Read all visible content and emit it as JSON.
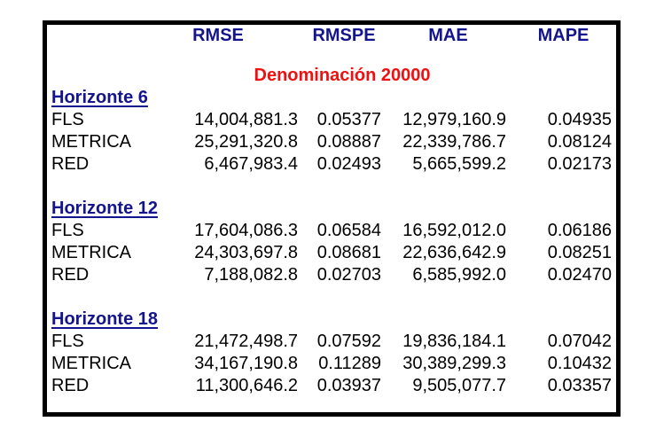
{
  "table": {
    "columns": [
      "RMSE",
      "RMSPE",
      "MAE",
      "MAPE"
    ],
    "title": "Denominación 20000",
    "colors": {
      "header_navy": "#14148C",
      "title_red": "#EE1111",
      "text_black": "#000000",
      "border_black": "#000000",
      "background": "#FFFFFF"
    },
    "sections": [
      {
        "heading": "Horizonte 6",
        "rows": [
          {
            "label": "FLS",
            "rmse": "14,004,881.3",
            "rmspe": "0.05377",
            "mae": "12,979,160.9",
            "mape": "0.04935"
          },
          {
            "label": "METRICA",
            "rmse": "25,291,320.8",
            "rmspe": "0.08887",
            "mae": "22,339,786.7",
            "mape": "0.08124"
          },
          {
            "label": "RED",
            "rmse": "6,467,983.4",
            "rmspe": "0.02493",
            "mae": "5,665,599.2",
            "mape": "0.02173"
          }
        ]
      },
      {
        "heading": "Horizonte 12",
        "rows": [
          {
            "label": "FLS",
            "rmse": "17,604,086.3",
            "rmspe": "0.06584",
            "mae": "16,592,012.0",
            "mape": "0.06186"
          },
          {
            "label": "METRICA",
            "rmse": "24,303,697.8",
            "rmspe": "0.08681",
            "mae": "22,636,642.9",
            "mape": "0.08251"
          },
          {
            "label": "RED",
            "rmse": "7,188,082.8",
            "rmspe": "0.02703",
            "mae": "6,585,992.0",
            "mape": "0.02470"
          }
        ]
      },
      {
        "heading": "Horizonte 18",
        "rows": [
          {
            "label": "FLS",
            "rmse": "21,472,498.7",
            "rmspe": "0.07592",
            "mae": "19,836,184.1",
            "mape": "0.07042"
          },
          {
            "label": "METRICA",
            "rmse": "34,167,190.8",
            "rmspe": "0.11289",
            "mae": "30,389,299.3",
            "mape": "0.10432"
          },
          {
            "label": "RED",
            "rmse": "11,300,646.2",
            "rmspe": "0.03937",
            "mae": "9,505,077.7",
            "mape": "0.03357"
          }
        ]
      }
    ]
  }
}
